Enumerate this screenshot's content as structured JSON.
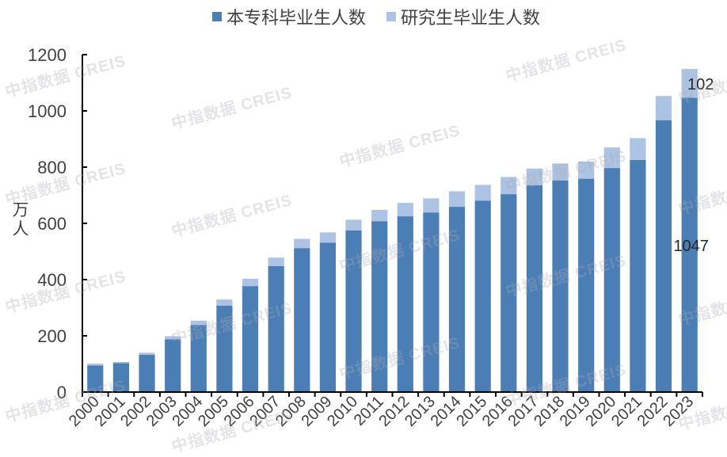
{
  "chart_data": {
    "type": "bar",
    "stacked": true,
    "title": "",
    "xlabel": "",
    "ylabel": "万人",
    "ylim": [
      0,
      1200
    ],
    "yticks": [
      0,
      200,
      400,
      600,
      800,
      1000,
      1200
    ],
    "grid": false,
    "legend_position": "top",
    "categories": [
      "2000",
      "2001",
      "2002",
      "2003",
      "2004",
      "2005",
      "2006",
      "2007",
      "2008",
      "2009",
      "2010",
      "2011",
      "2012",
      "2013",
      "2014",
      "2015",
      "2016",
      "2017",
      "2018",
      "2019",
      "2020",
      "2021",
      "2022",
      "2023"
    ],
    "series": [
      {
        "name": "本专科毕业生人数",
        "color": "#4a7eb5",
        "values": [
          95,
          103,
          133,
          188,
          239,
          307,
          377,
          448,
          512,
          531,
          575,
          608,
          625,
          639,
          659,
          681,
          704,
          736,
          753,
          759,
          797,
          826,
          967,
          1047
        ]
      },
      {
        "name": "研究生毕业生人数",
        "color": "#adc3e3",
        "values": [
          6,
          4,
          7,
          11,
          15,
          22,
          26,
          30,
          33,
          37,
          38,
          40,
          48,
          50,
          55,
          56,
          61,
          59,
          60,
          61,
          73,
          77,
          86,
          102
        ]
      }
    ],
    "annotations": [
      {
        "category": "2023",
        "series": "研究生毕业生人数",
        "text": "102"
      },
      {
        "category": "2023",
        "series": "本专科毕业生人数",
        "text": "1047"
      }
    ]
  },
  "legend": {
    "items": [
      {
        "label": "本专科毕业生人数",
        "color": "#4a7eb5"
      },
      {
        "label": "研究生毕业生人数",
        "color": "#adc3e3"
      }
    ]
  },
  "axis": {
    "ylabel_line1": "万",
    "ylabel_line2": "人"
  },
  "watermark": {
    "text": "中指数据  CREIS"
  }
}
